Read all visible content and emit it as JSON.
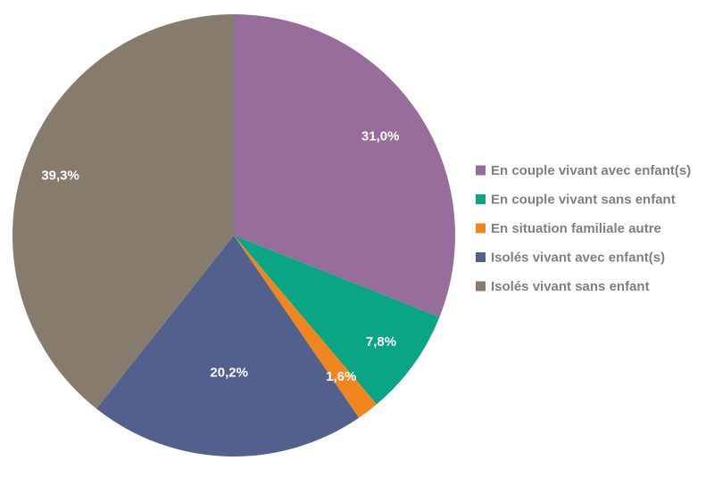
{
  "chart_data": {
    "type": "pie",
    "slices": [
      {
        "label": "En couple vivant avec enfant(s)",
        "value": 31.0,
        "value_label": "31,0%",
        "color": "#976d9c"
      },
      {
        "label": "En couple vivant sans enfant",
        "value": 7.8,
        "value_label": "7,8%",
        "color": "#0aa584"
      },
      {
        "label": "En situation familiale autre",
        "value": 1.6,
        "value_label": "1,6%",
        "color": "#f18620"
      },
      {
        "label": "Isolés vivant avec enfant(s)",
        "value": 20.2,
        "value_label": "20,2%",
        "color": "#52608e"
      },
      {
        "label": "Isolés vivant sans enfant",
        "value": 39.3,
        "value_label": "39,3%",
        "color": "#877b6e"
      }
    ],
    "start_angle_deg": 0,
    "direction": "clockwise",
    "legend_position": "right",
    "legend_text_color": "#7f7f7f",
    "label_text_color": "#ffffff"
  }
}
